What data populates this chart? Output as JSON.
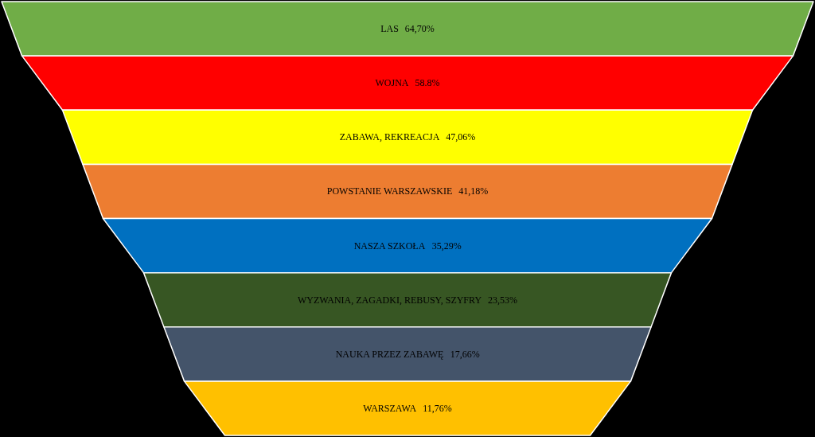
{
  "chart_data": {
    "type": "other",
    "categories": [
      "LAS",
      "WOJNA",
      "ZABAWA, REKREACJA",
      "POWSTANIE WARSZAWSKIE",
      "NASZA SZKOŁA",
      "WYZWANIA, ZAGADKI, REBUSY, SZYFRY",
      "NAUKA PRZEZ ZABAWĘ",
      "WARSZAWA"
    ],
    "values": [
      64.7,
      58.8,
      47.06,
      41.18,
      35.29,
      23.53,
      17.66,
      11.76
    ],
    "value_labels": [
      "64,70%",
      "58.8%",
      "47,06%",
      "41,18%",
      "35,29%",
      "23,53%",
      "17,66%",
      "11,76%"
    ],
    "colors": [
      "#70ad47",
      "#ff0000",
      "#ffff00",
      "#ed7d31",
      "#0070c0",
      "#375623",
      "#44546a",
      "#ffc000"
    ],
    "legend": false
  }
}
